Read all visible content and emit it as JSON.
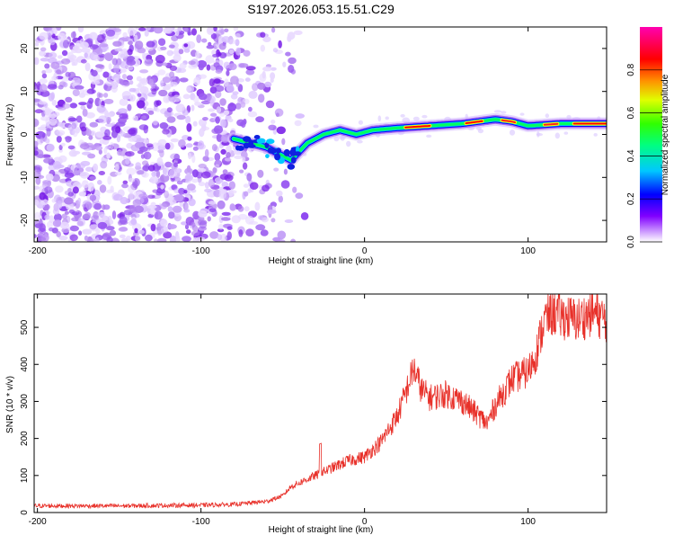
{
  "figure": {
    "title": "S197.2026.053.15.51.C29"
  },
  "chart_data": [
    {
      "type": "heatmap",
      "title": "S197.2026.053.15.51.C29",
      "xlabel": "Height of straight line (km)",
      "ylabel": "Frequency (Hz)",
      "xlim": [
        -202,
        148
      ],
      "ylim": [
        -25,
        25
      ],
      "xticks": [
        -200,
        -100,
        0,
        100
      ],
      "yticks": [
        -20,
        -10,
        0,
        10,
        20
      ],
      "colorbar": {
        "label": "Normalized spectral amplitude",
        "range": [
          0,
          1
        ],
        "ticks": [
          0.0,
          0.2,
          0.4,
          0.6,
          0.8
        ],
        "colors": [
          "#ffffff",
          "#a020f0",
          "#0000ff",
          "#00e0ff",
          "#00ff00",
          "#ffff00",
          "#ff8000",
          "#ff0000",
          "#ff00aa"
        ]
      },
      "ridge": {
        "description_points_x": [
          -80,
          -60,
          -45,
          -40,
          -35,
          -25,
          -15,
          -5,
          5,
          20,
          40,
          60,
          80,
          90,
          100,
          120,
          148
        ],
        "description_points_y": [
          -1,
          -3,
          -6,
          -4,
          -2,
          0,
          1,
          0,
          1,
          1.5,
          2,
          2.5,
          3.5,
          3,
          2,
          2.5,
          2.5
        ]
      }
    },
    {
      "type": "line",
      "xlabel": "Height of straight line (km)",
      "ylabel": "SNR (10 * v/v)",
      "xlim": [
        -202,
        148
      ],
      "ylim": [
        0,
        590
      ],
      "xticks": [
        -200,
        -100,
        0,
        100
      ],
      "yticks": [
        0,
        100,
        200,
        300,
        400,
        500
      ],
      "series": [
        {
          "name": "SNR",
          "color": "#e8312a",
          "trend_x": [
            -202,
            -150,
            -100,
            -80,
            -60,
            -50,
            -45,
            -40,
            -30,
            -20,
            -10,
            0,
            10,
            20,
            25,
            30,
            35,
            40,
            50,
            60,
            70,
            75,
            80,
            90,
            100,
            105,
            110,
            115,
            120,
            130,
            140,
            148
          ],
          "trend_y": [
            18,
            18,
            20,
            22,
            30,
            45,
            70,
            80,
            100,
            120,
            140,
            150,
            190,
            260,
            320,
            390,
            330,
            310,
            320,
            300,
            260,
            240,
            290,
            360,
            380,
            430,
            520,
            540,
            530,
            520,
            540,
            520
          ]
        }
      ]
    }
  ]
}
